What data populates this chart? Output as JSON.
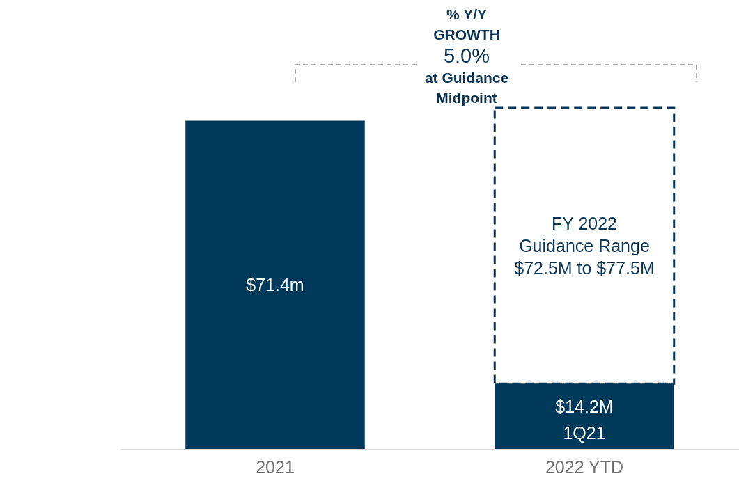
{
  "chart_data": {
    "type": "bar",
    "stacked": true,
    "categories": [
      "2021",
      "2022 YTD"
    ],
    "series": [
      {
        "color": "#00395a",
        "values": [
          71.4,
          14.2
        ],
        "value_labels": [
          "$71.4m",
          "$14.2M"
        ]
      },
      {
        "color": "#0b3554",
        "line_style": "dashed",
        "values": [
          null,
          60
        ],
        "value_labels": [
          null,
          "FY 2022\nGuidance Range\n$72.5M to $77.5M"
        ]
      }
    ],
    "annotations": [
      "% Y/Y\nGROWTH",
      "5.0%",
      "at Guidance\nMidpoint",
      "1Q21"
    ]
  }
}
